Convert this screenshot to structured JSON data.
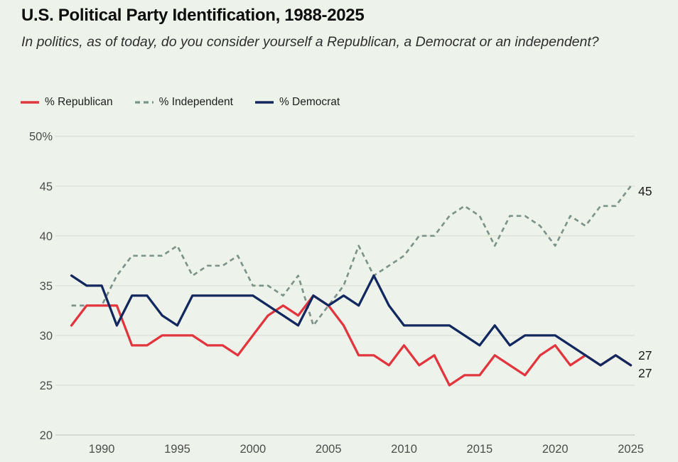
{
  "header": {
    "title": "U.S. Political Party Identification, 1988-2025",
    "subtitle": "In politics, as of today, do you consider yourself a Republican, a Democrat or an independent?"
  },
  "chart_data": {
    "type": "line",
    "title": "U.S. Political Party Identification, 1988-2025",
    "x": [
      1988,
      1989,
      1990,
      1991,
      1992,
      1993,
      1994,
      1995,
      1996,
      1997,
      1998,
      1999,
      2000,
      2001,
      2002,
      2003,
      2004,
      2005,
      2006,
      2007,
      2008,
      2009,
      2010,
      2011,
      2012,
      2013,
      2014,
      2015,
      2016,
      2017,
      2018,
      2019,
      2020,
      2021,
      2022,
      2023,
      2024,
      2025
    ],
    "series": [
      {
        "name": "% Republican",
        "color": "#e2363f",
        "style": "solid",
        "values": [
          31,
          33,
          33,
          33,
          29,
          29,
          30,
          30,
          30,
          29,
          29,
          28,
          30,
          32,
          33,
          32,
          34,
          33,
          31,
          28,
          28,
          27,
          29,
          27,
          28,
          25,
          26,
          26,
          28,
          27,
          26,
          28,
          29,
          27,
          28,
          27,
          28,
          27
        ]
      },
      {
        "name": "% Independent",
        "color": "#7d938b",
        "style": "dashed",
        "values": [
          33,
          33,
          33,
          36,
          38,
          38,
          38,
          39,
          36,
          37,
          37,
          38,
          35,
          35,
          34,
          36,
          31,
          33,
          35,
          39,
          36,
          37,
          38,
          40,
          40,
          42,
          43,
          42,
          39,
          42,
          42,
          41,
          39,
          42,
          41,
          43,
          43,
          45
        ]
      },
      {
        "name": "% Democrat",
        "color": "#13285e",
        "style": "solid",
        "values": [
          36,
          35,
          35,
          31,
          34,
          34,
          32,
          31,
          34,
          34,
          34,
          34,
          34,
          33,
          32,
          31,
          34,
          33,
          34,
          33,
          36,
          33,
          31,
          31,
          31,
          31,
          30,
          29,
          31,
          29,
          30,
          30,
          30,
          29,
          28,
          27,
          28,
          27
        ]
      }
    ],
    "ylim": [
      20,
      50
    ],
    "yticks": [
      20,
      25,
      30,
      35,
      40,
      45,
      50
    ],
    "ytick_labels": [
      "20",
      "25",
      "30",
      "35",
      "40",
      "45",
      "50%"
    ],
    "xticks": [
      1990,
      1995,
      2000,
      2005,
      2010,
      2015,
      2020,
      2025
    ],
    "grid": "horizontal",
    "legend_position": "top-left",
    "end_labels": [
      {
        "text": "45",
        "x": 898,
        "y": 275
      },
      {
        "text": "27",
        "x": 898,
        "y": 506
      },
      {
        "text": "27",
        "x": 898,
        "y": 531
      }
    ],
    "colors": {
      "background": "#edf3eb",
      "gridline": "#dbe1d6",
      "axisline": "#c5ccc0",
      "tick_text": "#4d4d4d",
      "end_label_text": "#1c1c1c"
    }
  }
}
